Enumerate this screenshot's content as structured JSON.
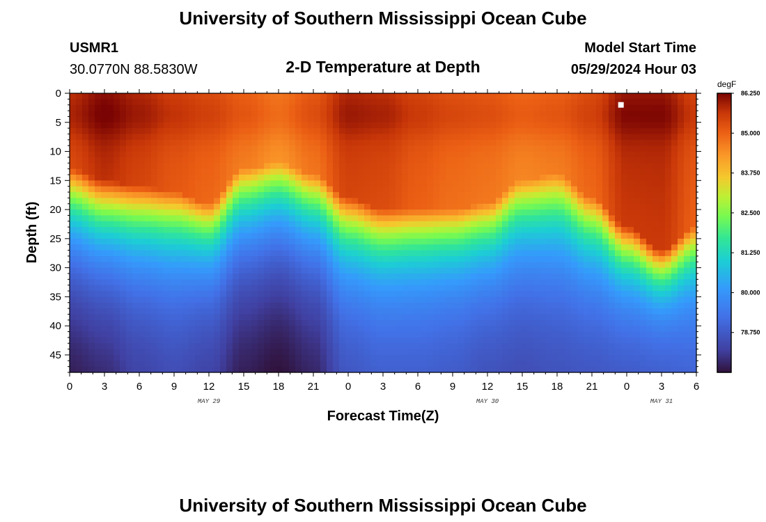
{
  "header": {
    "title": "University of Southern Mississippi Ocean Cube",
    "station": "USMR1",
    "coords": "30.0770N  88.5830W",
    "plot_title": "2-D Temperature at Depth",
    "model_label": "Model Start Time",
    "model_time": "05/29/2024 Hour 03"
  },
  "footer": {
    "title": "University of Southern Mississippi Ocean Cube"
  },
  "colors": {
    "marker": "#ffffff"
  },
  "chart_data": {
    "type": "heatmap",
    "title": "2-D Temperature at Depth",
    "xlabel": "Forecast Time(Z)",
    "ylabel": "Depth (ft)",
    "x_range_hours": [
      0,
      54
    ],
    "ylim": [
      0,
      48
    ],
    "x_ticks": [
      "0",
      "3",
      "6",
      "9",
      "12",
      "15",
      "18",
      "21",
      "0",
      "3",
      "6",
      "9",
      "12",
      "15",
      "18",
      "21",
      "0",
      "3",
      "6"
    ],
    "y_ticks": [
      "0",
      "5",
      "10",
      "15",
      "20",
      "25",
      "30",
      "35",
      "40",
      "45"
    ],
    "date_labels": [
      {
        "text": "MAY 29",
        "hour": 12
      },
      {
        "text": "MAY 30",
        "hour": 36
      },
      {
        "text": "MAY 31",
        "hour": 51
      }
    ],
    "colorbar": {
      "unit": "degF",
      "min": 77.5,
      "max": 86.25,
      "ticks": [
        "86.250",
        "85.000",
        "83.750",
        "82.500",
        "81.250",
        "80.000",
        "78.750"
      ],
      "tick_values": [
        86.25,
        85.0,
        83.75,
        82.5,
        81.25,
        80.0,
        78.75
      ]
    },
    "profile": {
      "hours": [
        0,
        3,
        6,
        9,
        12,
        15,
        18,
        21,
        24,
        27,
        30,
        33,
        36,
        39,
        42,
        45,
        48,
        51,
        54
      ],
      "surface_degF": [
        85.6,
        86.0,
        85.7,
        85.4,
        85.2,
        84.9,
        84.6,
        85.0,
        85.7,
        85.6,
        85.3,
        85.1,
        85.0,
        84.8,
        84.9,
        85.2,
        85.9,
        85.9,
        85.3
      ],
      "mixed_layer_depth_ft": [
        17,
        19,
        20,
        21,
        23,
        17,
        16,
        18,
        22,
        24,
        24,
        24,
        23,
        19,
        18,
        22,
        27,
        31,
        27
      ],
      "bottom_degF": [
        77.7,
        77.9,
        78.3,
        78.5,
        78.3,
        77.7,
        77.5,
        77.8,
        78.7,
        78.9,
        78.9,
        78.8,
        78.6,
        78.5,
        78.6,
        78.7,
        78.8,
        78.9,
        79.0
      ]
    },
    "marker": {
      "hour": 47.5,
      "depth_ft": 2
    }
  }
}
